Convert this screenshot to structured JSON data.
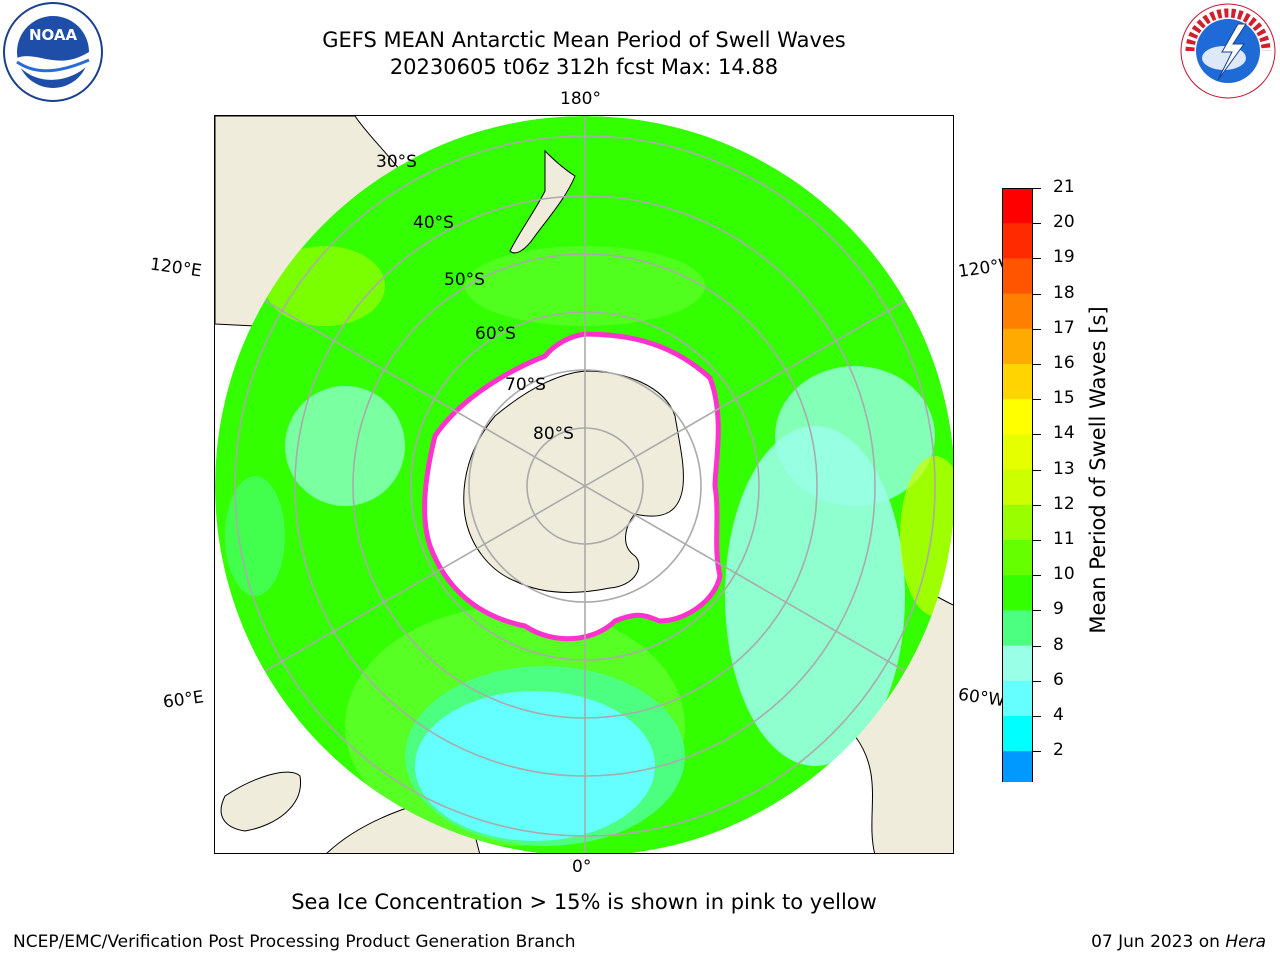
{
  "header": {
    "title_line1": "GEFS MEAN Antarctic Mean Period of Swell Waves",
    "title_line2": "20230605 t06z 312h fcst   Max: 14.88"
  },
  "logos": {
    "left": "NOAA",
    "left_ring_text": "NATIONAL OCEANIC AND ATMOSPHERIC ADMINISTRATION · U.S. DEPARTMENT OF COMMERCE",
    "right_ring_text": "NATIONAL WEATHER SERVICE"
  },
  "map": {
    "longitude_labels": {
      "top": "180°",
      "bottom": "0°",
      "upper_left": "120°E",
      "upper_right": "120°W",
      "lower_left": "60°E",
      "lower_right": "60°W"
    },
    "latitude_labels": [
      "30°S",
      "40°S",
      "50°S",
      "60°S",
      "70°S",
      "80°S"
    ],
    "colors": {
      "land": "#efecdc",
      "ice_edge": "#ff33cc",
      "swell_dominant": "#33ff00"
    }
  },
  "colorbar": {
    "label": "Mean Period of Swell Waves [s]",
    "ticks": [
      "21",
      "20",
      "19",
      "18",
      "17",
      "16",
      "15",
      "14",
      "13",
      "12",
      "11",
      "10",
      "9",
      "8",
      "6",
      "4",
      "2"
    ],
    "colors_top_to_bottom": [
      "#ff0000",
      "#ff2a00",
      "#ff5500",
      "#ff8000",
      "#ffaa00",
      "#ffd400",
      "#ffff00",
      "#e6ff00",
      "#ccff00",
      "#99ff00",
      "#66ff00",
      "#33ff00",
      "#4dff80",
      "#99ffe6",
      "#66ffff",
      "#00ffff",
      "#0099ff",
      "#0055ff"
    ]
  },
  "note": "Sea Ice Concentration > 15% is shown in pink to yellow",
  "footer": {
    "left": "NCEP/EMC/Verification Post Processing Product Generation Branch",
    "right_prefix": "07 Jun 2023 on ",
    "right_host": "Hera"
  }
}
